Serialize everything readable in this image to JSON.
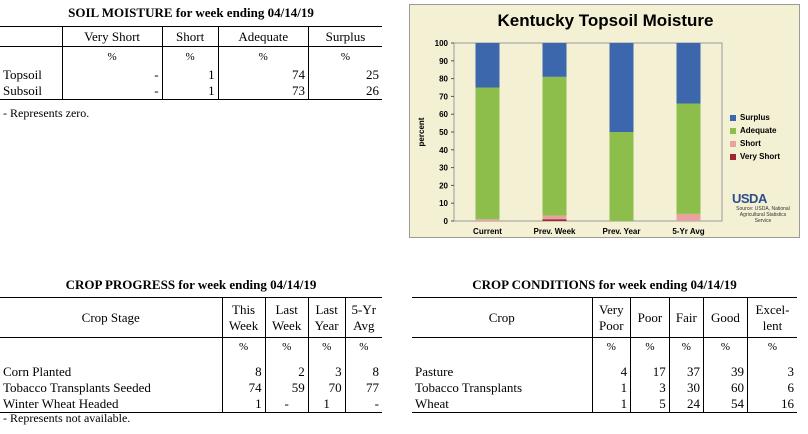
{
  "soil": {
    "title": "SOIL MOISTURE for week ending 04/14/19",
    "columns": [
      "Very Short",
      "Short",
      "Adequate",
      "Surplus"
    ],
    "unit": "%",
    "rows": [
      {
        "label": "Topsoil",
        "values": [
          "-",
          "1",
          "74",
          "25"
        ]
      },
      {
        "label": "Subsoil",
        "values": [
          "-",
          "1",
          "73",
          "26"
        ]
      }
    ],
    "note": "- Represents zero."
  },
  "progress": {
    "title": "CROP PROGRESS for week ending 04/14/19",
    "stage_header": "Crop Stage",
    "columns": [
      [
        "This",
        "Week"
      ],
      [
        "Last",
        "Week"
      ],
      [
        "Last",
        "Year"
      ],
      [
        "5-Yr",
        "Avg"
      ]
    ],
    "unit": "%",
    "rows": [
      {
        "label": "Corn Planted",
        "values": [
          "8",
          "2",
          "3",
          "8"
        ]
      },
      {
        "label": "Tobacco Transplants Seeded",
        "values": [
          "74",
          "59",
          "70",
          "77"
        ]
      },
      {
        "label": "Winter Wheat Headed",
        "values": [
          "1",
          "-",
          "1",
          "-"
        ]
      }
    ],
    "note": "- Represents not available."
  },
  "conditions": {
    "title": "CROP CONDITIONS for week ending 04/14/19",
    "crop_header": "Crop",
    "columns": [
      [
        "Very",
        "Poor"
      ],
      [
        "Poor"
      ],
      [
        "Fair"
      ],
      [
        "Good"
      ],
      [
        "Excel-",
        "lent"
      ]
    ],
    "unit": "%",
    "rows": [
      {
        "label": "Pasture",
        "values": [
          "4",
          "17",
          "37",
          "39",
          "3"
        ]
      },
      {
        "label": "Tobacco Transplants",
        "values": [
          "1",
          "3",
          "30",
          "60",
          "6"
        ]
      },
      {
        "label": "Wheat",
        "values": [
          "1",
          "5",
          "24",
          "54",
          "16"
        ]
      }
    ]
  },
  "chart_data": {
    "type": "bar",
    "stacked": true,
    "title": "Kentucky Topsoil Moisture",
    "ylabel": "percent",
    "xlabel": "",
    "ylim": [
      0,
      100
    ],
    "yticks": [
      0,
      10,
      20,
      30,
      40,
      50,
      60,
      70,
      80,
      90,
      100
    ],
    "categories": [
      "Current",
      "Prev. Week",
      "Prev. Year",
      "5-Yr Avg"
    ],
    "series": [
      {
        "name": "Very Short",
        "color": "#a1262e",
        "values": [
          0,
          1,
          0,
          0
        ]
      },
      {
        "name": "Short",
        "color": "#e8a3a1",
        "values": [
          1,
          2,
          0,
          4
        ]
      },
      {
        "name": "Adequate",
        "color": "#8dbe4b",
        "values": [
          74,
          78,
          50,
          62
        ]
      },
      {
        "name": "Surplus",
        "color": "#3d67ad",
        "values": [
          25,
          19,
          50,
          34
        ]
      }
    ],
    "legend_order": [
      "Surplus",
      "Adequate",
      "Short",
      "Very Short"
    ],
    "legend_position": "right",
    "grid": false,
    "logo_text": "USDA",
    "source_text": "Source: USDA, National Agricultural Statistics Service"
  }
}
